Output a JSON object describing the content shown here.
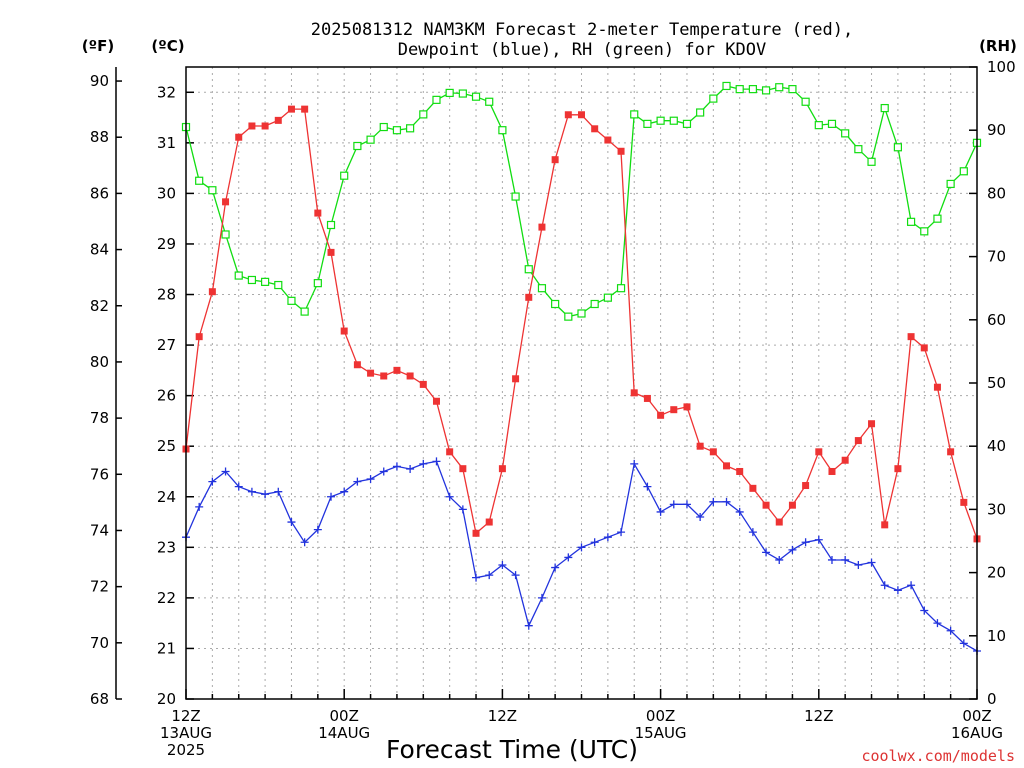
{
  "title_line1": "2025081312 NAM3KM Forecast 2-meter Temperature (red),",
  "title_line2": "Dewpoint (blue), RH (green) for KDOV",
  "units": {
    "left_f": "(ºF)",
    "left_c": "(ºC)",
    "right_rh": "(RH)"
  },
  "xlabel": "Forecast Time (UTC)",
  "credit": "coolwx.com/models",
  "colors": {
    "temperature": "#ee3333",
    "dewpoint": "#2233dd",
    "rh": "#11dd11"
  },
  "chart_data": {
    "type": "line",
    "x_unit": "forecast hour from 2025-08-13 12Z",
    "x_range": [
      0,
      60
    ],
    "x_ticks": [
      {
        "hour": 0,
        "label": [
          "12Z",
          "13AUG",
          "2025"
        ]
      },
      {
        "hour": 12,
        "label": [
          "00Z",
          "14AUG"
        ]
      },
      {
        "hour": 24,
        "label": [
          "12Z"
        ]
      },
      {
        "hour": 36,
        "label": [
          "00Z",
          "15AUG"
        ]
      },
      {
        "hour": 48,
        "label": [
          "12Z"
        ]
      },
      {
        "hour": 60,
        "label": [
          "00Z",
          "16AUG"
        ]
      }
    ],
    "left_axis_f": {
      "range": [
        68,
        90.5
      ],
      "ticks": [
        68,
        70,
        72,
        74,
        76,
        78,
        80,
        82,
        84,
        86,
        88,
        90
      ]
    },
    "left_axis_c": {
      "range": [
        20,
        32.5
      ],
      "ticks": [
        20,
        21,
        22,
        23,
        24,
        25,
        26,
        27,
        28,
        29,
        30,
        31,
        32
      ]
    },
    "right_axis_rh": {
      "range": [
        0,
        100
      ],
      "ticks": [
        0,
        10,
        20,
        30,
        40,
        50,
        60,
        70,
        80,
        90,
        100
      ]
    },
    "grid": true,
    "series": [
      {
        "key": "temperature",
        "axis": "F",
        "marker": "filled-square",
        "x": [
          0,
          1,
          2,
          3,
          4,
          5,
          6,
          7,
          8,
          9,
          10,
          11,
          12,
          13,
          14,
          15,
          16,
          17,
          18,
          19,
          20,
          21,
          22,
          23,
          24,
          25,
          26,
          27,
          28,
          29,
          30,
          31,
          32,
          33,
          34,
          35,
          36,
          37,
          38,
          39,
          40,
          41,
          42,
          43,
          44,
          45,
          46,
          47,
          48,
          49,
          50,
          51,
          52,
          53,
          54,
          55,
          56,
          57,
          58,
          59,
          60
        ],
        "values": [
          76.9,
          80.9,
          82.5,
          85.7,
          88.0,
          88.4,
          88.4,
          88.6,
          89.0,
          89.0,
          85.3,
          83.9,
          81.1,
          79.9,
          79.6,
          79.5,
          79.7,
          79.5,
          79.2,
          78.6,
          76.8,
          76.2,
          73.9,
          74.3,
          76.2,
          79.4,
          82.3,
          84.8,
          87.2,
          88.8,
          88.8,
          88.3,
          87.9,
          87.5,
          78.9,
          78.7,
          78.1,
          78.3,
          78.4,
          77.0,
          76.8,
          76.3,
          76.1,
          75.5,
          74.9,
          74.3,
          74.9,
          75.6,
          76.8,
          76.1,
          76.5,
          77.2,
          77.8,
          74.2,
          76.2,
          80.9,
          80.5,
          79.1,
          76.8,
          75.0,
          73.7
        ]
      },
      {
        "key": "dewpoint",
        "axis": "C",
        "marker": "plus",
        "x": [
          0,
          1,
          2,
          3,
          4,
          5,
          6,
          7,
          8,
          9,
          10,
          11,
          12,
          13,
          14,
          15,
          16,
          17,
          18,
          19,
          20,
          21,
          22,
          23,
          24,
          25,
          26,
          27,
          28,
          29,
          30,
          31,
          32,
          33,
          34,
          35,
          36,
          37,
          38,
          39,
          40,
          41,
          42,
          43,
          44,
          45,
          46,
          47,
          48,
          49,
          50,
          51,
          52,
          53,
          54,
          55,
          56,
          57,
          58,
          59,
          60
        ],
        "values": [
          23.2,
          23.8,
          24.3,
          24.5,
          24.2,
          24.1,
          24.05,
          24.1,
          23.5,
          23.1,
          23.35,
          24.0,
          24.1,
          24.3,
          24.35,
          24.5,
          24.6,
          24.55,
          24.65,
          24.7,
          24.0,
          23.75,
          22.4,
          22.45,
          22.65,
          22.45,
          21.45,
          22.0,
          22.6,
          22.8,
          23.0,
          23.1,
          23.2,
          23.3,
          24.65,
          24.2,
          23.7,
          23.85,
          23.85,
          23.6,
          23.9,
          23.9,
          23.7,
          23.3,
          22.9,
          22.75,
          22.95,
          23.1,
          23.15,
          22.75,
          22.75,
          22.65,
          22.7,
          22.25,
          22.15,
          22.25,
          21.75,
          21.5,
          21.35,
          21.1,
          20.95
        ]
      },
      {
        "key": "rh",
        "axis": "RH",
        "marker": "open-square",
        "x": [
          0,
          1,
          2,
          3,
          4,
          5,
          6,
          7,
          8,
          9,
          10,
          11,
          12,
          13,
          14,
          15,
          16,
          17,
          18,
          19,
          20,
          21,
          22,
          23,
          24,
          25,
          26,
          27,
          28,
          29,
          30,
          31,
          32,
          33,
          34,
          35,
          36,
          37,
          38,
          39,
          40,
          41,
          42,
          43,
          44,
          45,
          46,
          47,
          48,
          49,
          50,
          51,
          52,
          53,
          54,
          55,
          56,
          57,
          58,
          59,
          60
        ],
        "values": [
          90.5,
          82,
          80.5,
          73.5,
          67,
          66.3,
          66,
          65.5,
          63,
          61.3,
          65.8,
          75,
          82.8,
          87.5,
          88.5,
          90.5,
          90,
          90.3,
          92.5,
          94.8,
          95.9,
          95.8,
          95.3,
          94.5,
          90,
          79.5,
          68,
          65,
          62.5,
          60.5,
          61,
          62.5,
          63.5,
          65,
          92.5,
          91,
          91.5,
          91.5,
          91,
          92.8,
          95,
          97,
          96.5,
          96.5,
          96.3,
          96.8,
          96.5,
          94.5,
          90.8,
          91,
          89.5,
          87,
          85,
          93.5,
          87.3,
          75.5,
          74,
          76,
          81.5,
          83.5,
          88
        ]
      }
    ]
  }
}
